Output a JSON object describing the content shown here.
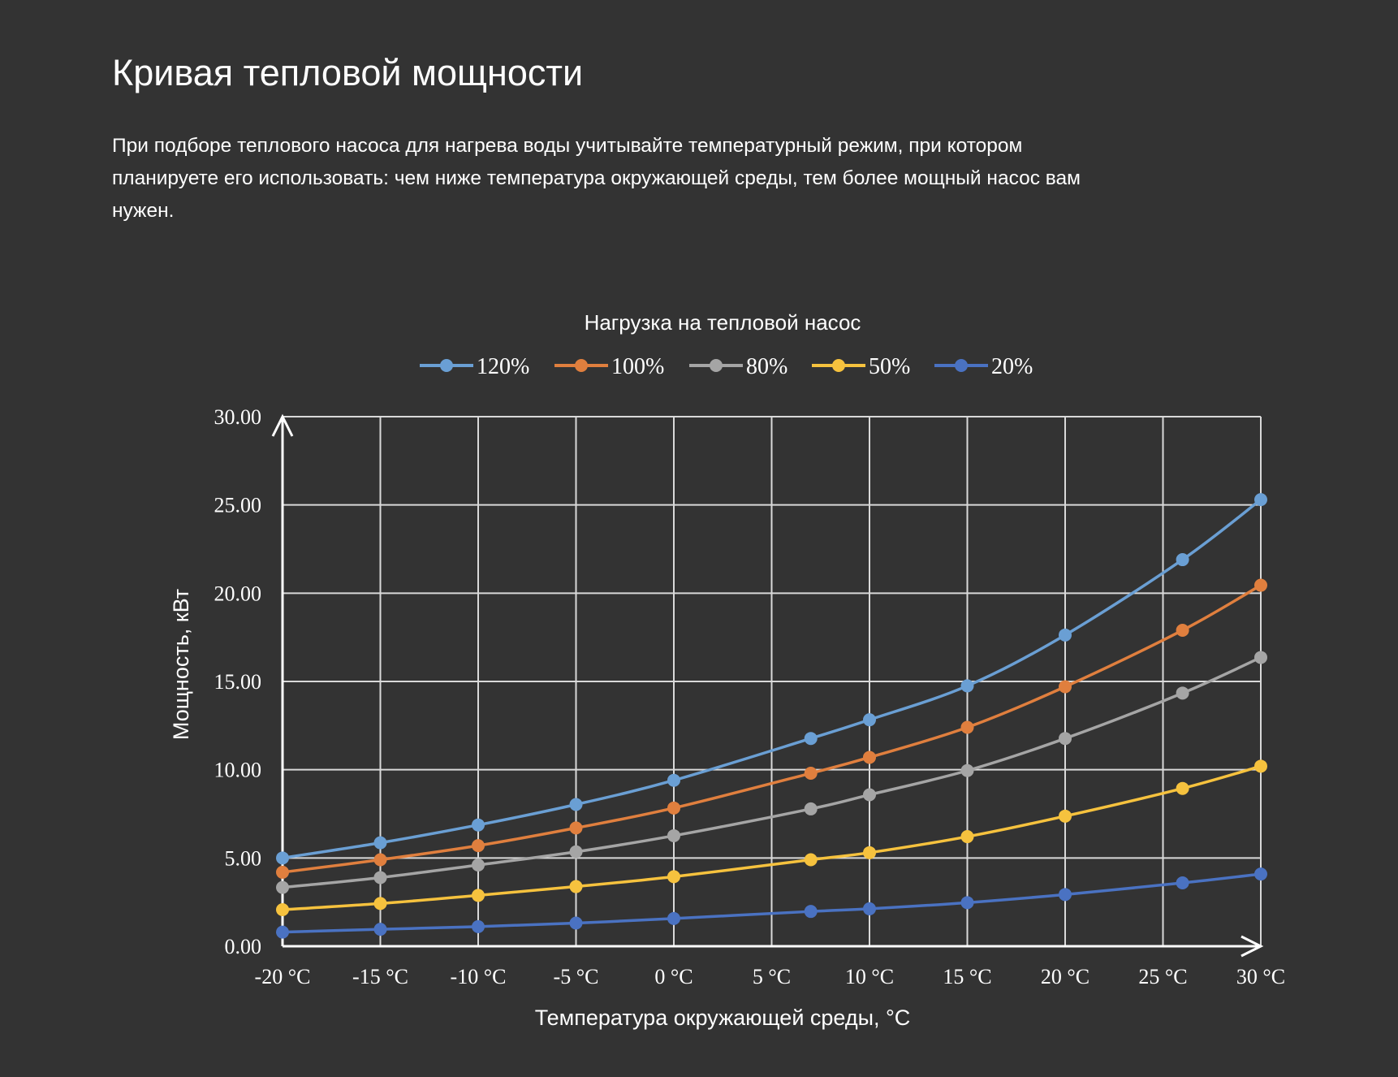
{
  "header": {
    "title": "Кривая тепловой мощности",
    "description": "При подборе теплового насоса для нагрева воды учитывайте температурный режим, при котором планируете его использовать: чем ниже температура окружающей среды, тем более мощный насос вам нужен."
  },
  "chart_data": {
    "type": "line",
    "title": "Нагрузка на тепловой насос",
    "xlabel": "Температура окружающей среды, °C",
    "ylabel": "Мощность, кВт",
    "xlim": [
      -20,
      30
    ],
    "ylim": [
      0,
      30
    ],
    "x_ticks": [
      -20,
      -15,
      -10,
      -5,
      0,
      5,
      10,
      15,
      20,
      25,
      30
    ],
    "x_tick_labels": [
      "-20 °C",
      "-15 °C",
      "-10 °C",
      "-5 °C",
      "0 °C",
      "5 °C",
      "10 °C",
      "15 °C",
      "20 °C",
      "25 °C",
      "30 °C"
    ],
    "y_tick_labels": [
      "0.00",
      "5.00",
      "10.00",
      "15.00",
      "20.00",
      "25.00",
      "30.00"
    ],
    "y_ticks": [
      0,
      5,
      10,
      15,
      20,
      25,
      30
    ],
    "grid": true,
    "legend_position": "top",
    "x": [
      -20,
      -15,
      -10,
      -5,
      0,
      7,
      10,
      15,
      20,
      26,
      30
    ],
    "series": [
      {
        "name": "120%",
        "color": "#6a9fd4",
        "values": [
          5.0,
          5.86,
          6.87,
          8.03,
          9.4,
          11.77,
          12.83,
          14.75,
          17.63,
          21.9,
          25.3
        ]
      },
      {
        "name": "100%",
        "color": "#e07f3e",
        "values": [
          4.19,
          4.9,
          5.7,
          6.7,
          7.83,
          9.8,
          10.7,
          12.4,
          14.7,
          17.9,
          20.45
        ]
      },
      {
        "name": "80%",
        "color": "#a5a5a5",
        "values": [
          3.33,
          3.89,
          4.6,
          5.35,
          6.26,
          7.78,
          8.58,
          9.95,
          11.77,
          14.34,
          16.36
        ]
      },
      {
        "name": "50%",
        "color": "#f6c23e",
        "values": [
          2.07,
          2.42,
          2.88,
          3.38,
          3.94,
          4.9,
          5.3,
          6.21,
          7.37,
          8.94,
          10.2
        ]
      },
      {
        "name": "20%",
        "color": "#4a72c2",
        "values": [
          0.8,
          0.96,
          1.11,
          1.31,
          1.57,
          1.97,
          2.12,
          2.47,
          2.93,
          3.59,
          4.09
        ]
      }
    ]
  }
}
